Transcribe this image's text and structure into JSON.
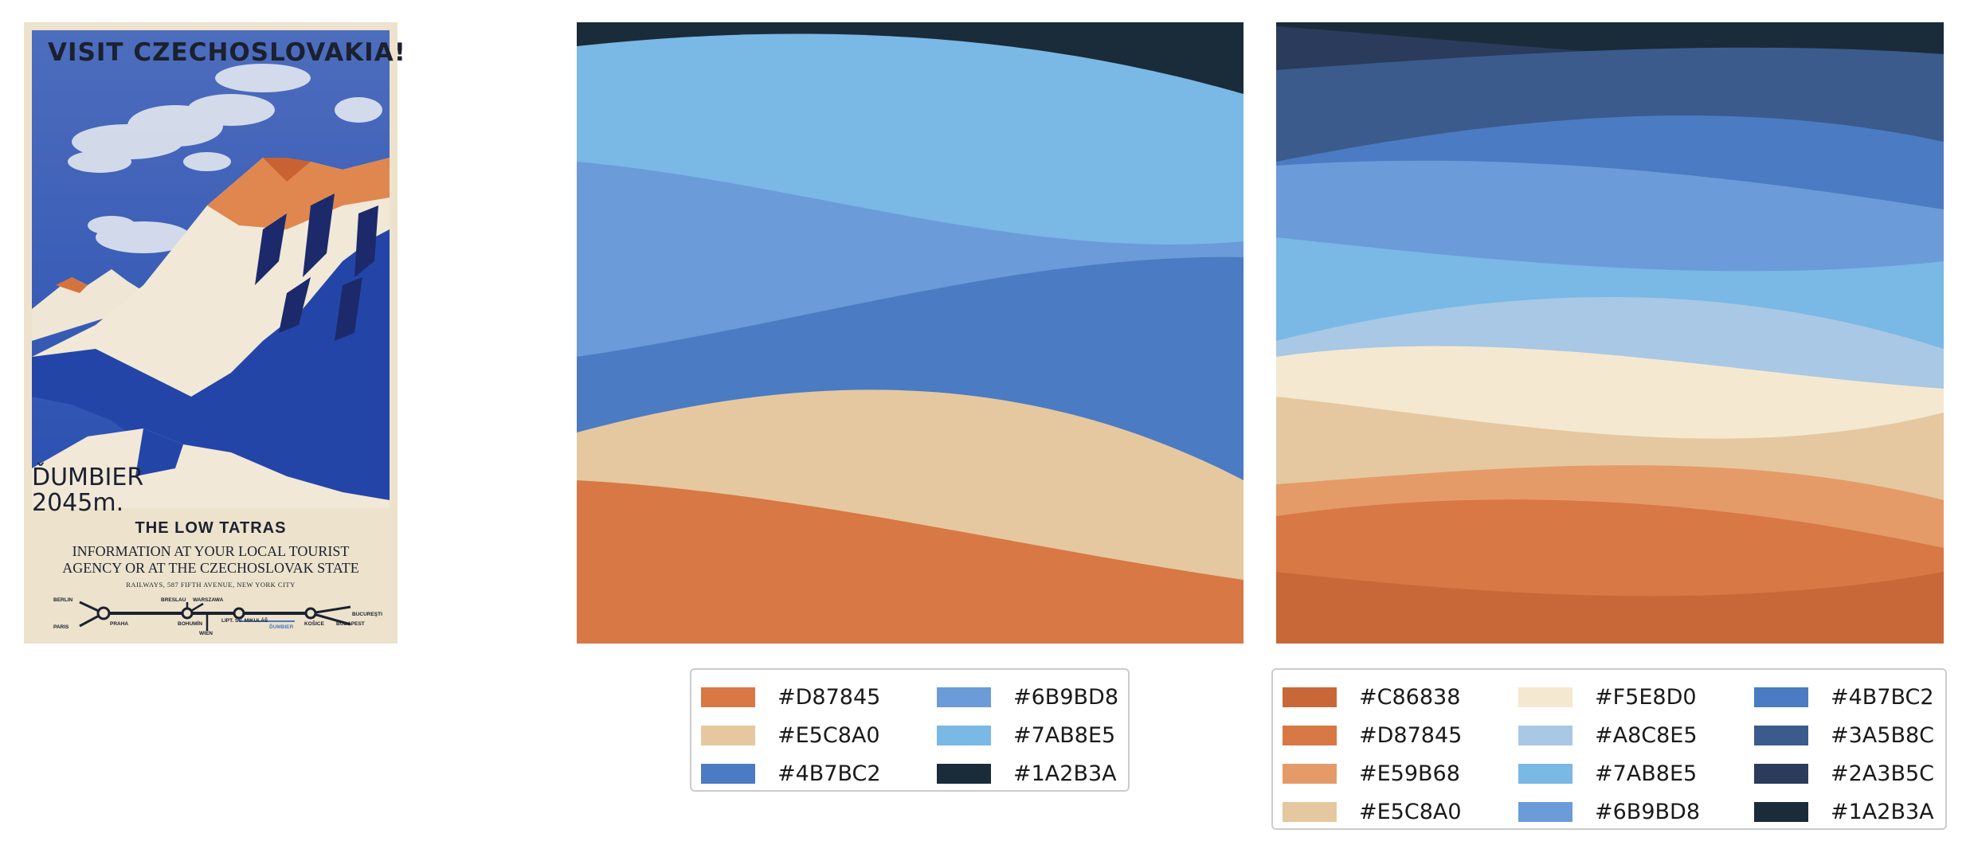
{
  "poster": {
    "title": "VISIT CZECHOSLOVAKIA!",
    "peak": "ĎUMBIER\n2045m.",
    "heading": "THE LOW TATRAS",
    "info_line_1": "INFORMATION AT YOUR LOCAL TOURIST",
    "info_line_2": "AGENCY OR AT THE CZECHOSLOVAK STATE",
    "address": "RAILWAYS, 587 FIFTH AVENUE, NEW YORK CITY",
    "rail_labels": [
      "BERLIN",
      "PARIS",
      "PRAHA",
      "BRESLAU",
      "WARSZAWA",
      "BOHUMÍN",
      "WIEN",
      "LIPT. SV. MIKULÁŠ",
      "ĎUMBIER",
      "KOŠICE",
      "BUCUREŞTI",
      "BUDAPEST"
    ]
  },
  "palette_6": {
    "layers": [
      "#1A2B3A",
      "#7AB8E5",
      "#6B9BD8",
      "#4B7BC2",
      "#E5C8A0",
      "#D87845"
    ],
    "legend": [
      {
        "color": "#D87845",
        "label": "#D87845"
      },
      {
        "color": "#E5C8A0",
        "label": "#E5C8A0"
      },
      {
        "color": "#4B7BC2",
        "label": "#4B7BC2"
      },
      {
        "color": "#6B9BD8",
        "label": "#6B9BD8"
      },
      {
        "color": "#7AB8E5",
        "label": "#7AB8E5"
      },
      {
        "color": "#1A2B3A",
        "label": "#1A2B3A"
      }
    ]
  },
  "palette_12": {
    "layers": [
      "#1A2B3A",
      "#2A3B5C",
      "#3A5B8C",
      "#4B7BC2",
      "#6B9BD8",
      "#7AB8E5",
      "#A8C8E5",
      "#F5E8D0",
      "#E5C8A0",
      "#E59B68",
      "#D87845",
      "#C86838"
    ],
    "legend": [
      {
        "color": "#C86838",
        "label": "#C86838"
      },
      {
        "color": "#D87845",
        "label": "#D87845"
      },
      {
        "color": "#E59B68",
        "label": "#E59B68"
      },
      {
        "color": "#E5C8A0",
        "label": "#E5C8A0"
      },
      {
        "color": "#F5E8D0",
        "label": "#F5E8D0"
      },
      {
        "color": "#A8C8E5",
        "label": "#A8C8E5"
      },
      {
        "color": "#7AB8E5",
        "label": "#7AB8E5"
      },
      {
        "color": "#6B9BD8",
        "label": "#6B9BD8"
      },
      {
        "color": "#4B7BC2",
        "label": "#4B7BC2"
      },
      {
        "color": "#3A5B8C",
        "label": "#3A5B8C"
      },
      {
        "color": "#2A3B5C",
        "label": "#2A3B5C"
      },
      {
        "color": "#1A2B3A",
        "label": "#1A2B3A"
      }
    ]
  }
}
